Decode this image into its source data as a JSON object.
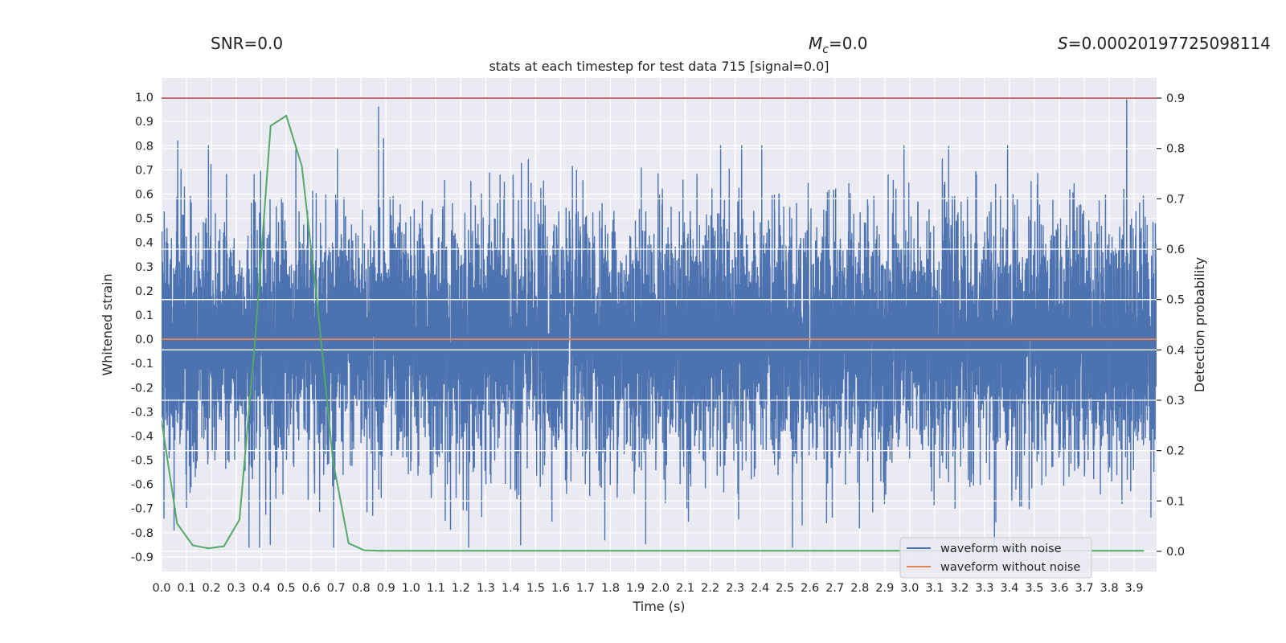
{
  "figure": {
    "header_snr": "SNR=0.0",
    "header_mc": "=0.0",
    "header_mc_symbol": "M",
    "header_mc_sub": "c",
    "header_s_symbol": "S",
    "header_s": "=0.00020197725098114",
    "title": "stats at each timestep for test data 715 [signal=0.0]"
  },
  "chart_data": {
    "type": "line",
    "title": "stats at each timestep for test data 715 [signal=0.0]",
    "xlabel": "Time (s)",
    "ylabel": "Whitened strain",
    "y2label": "Detection probability",
    "xlim": [
      0.0,
      3.99
    ],
    "ylim": [
      -0.96,
      1.08
    ],
    "y2lim": [
      -0.04,
      0.94
    ],
    "x_ticks": [
      0.0,
      0.1,
      0.2,
      0.3,
      0.4,
      0.5,
      0.6,
      0.7,
      0.8,
      0.9,
      1.0,
      1.1,
      1.2,
      1.3,
      1.4,
      1.5,
      1.6,
      1.7,
      1.8,
      1.9,
      2.0,
      2.1,
      2.2,
      2.3,
      2.4,
      2.5,
      2.6,
      2.7,
      2.8,
      2.9,
      3.0,
      3.1,
      3.2,
      3.3,
      3.4,
      3.5,
      3.6,
      3.7,
      3.8,
      3.9
    ],
    "x_tick_labels": [
      "0.0",
      "0.1",
      "0.2",
      "0.3",
      "0.4",
      "0.5",
      "0.6",
      "0.7",
      "0.8",
      "0.9",
      "1.0",
      "1.1",
      "1.2",
      "1.3",
      "1.4",
      "1.5",
      "1.6",
      "1.7",
      "1.8",
      "1.9",
      "2.0",
      "2.1",
      "2.2",
      "2.3",
      "2.4",
      "2.5",
      "2.6",
      "2.7",
      "2.8",
      "2.9",
      "3.0",
      "3.1",
      "3.2",
      "3.3",
      "3.4",
      "3.5",
      "3.6",
      "3.7",
      "3.8",
      "3.9"
    ],
    "y_ticks": [
      1.0,
      0.9,
      0.8,
      0.7,
      0.6,
      0.5,
      0.4,
      0.3,
      0.2,
      0.1,
      0.0,
      -0.1,
      -0.2,
      -0.3,
      -0.4,
      -0.5,
      -0.6,
      -0.7,
      -0.8,
      -0.9
    ],
    "y_tick_labels": [
      "1.0",
      "0.9",
      "0.8",
      "0.7",
      "0.6",
      "0.5",
      "0.4",
      "0.3",
      "0.2",
      "0.1",
      "0.0",
      "-0.1",
      "-0.2",
      "-0.3",
      "-0.4",
      "-0.5",
      "-0.6",
      "-0.7",
      "-0.8",
      "-0.9"
    ],
    "y2_ticks": [
      0.9,
      0.8,
      0.7,
      0.6,
      0.5,
      0.4,
      0.3,
      0.2,
      0.1,
      0.0
    ],
    "y2_tick_labels": [
      "0.9",
      "0.8",
      "0.7",
      "0.6",
      "0.5",
      "0.4",
      "0.3",
      "0.2",
      "0.1",
      "0.0"
    ],
    "grid": true,
    "legend_position": "bottom-right",
    "threshold": {
      "y2": 0.9,
      "color": "#c44e52"
    },
    "series": [
      {
        "name": "waveform with noise",
        "axis": "left",
        "color": "#4c72b0",
        "kind": "noise",
        "sample_rate_hz": 2048,
        "duration_s": 4.0,
        "std": 0.25,
        "peaks": [
          {
            "x": 0.01,
            "y": -0.74
          },
          {
            "x": 0.065,
            "y": 0.82
          },
          {
            "x": 0.393,
            "y": -0.86
          },
          {
            "x": 0.87,
            "y": 0.96
          },
          {
            "x": 0.89,
            "y": 0.83
          },
          {
            "x": 1.44,
            "y": -0.85
          },
          {
            "x": 2.53,
            "y": -0.86
          },
          {
            "x": 3.34,
            "y": -0.86
          },
          {
            "x": 3.87,
            "y": 0.99
          }
        ]
      },
      {
        "name": "waveform without noise",
        "axis": "left",
        "color": "#dd8452",
        "x": [
          0.0,
          3.99
        ],
        "y": [
          0.0,
          0.0
        ]
      },
      {
        "name": "",
        "axis": "right",
        "color": "#55a868",
        "x": [
          0.0,
          0.0625,
          0.125,
          0.1875,
          0.25,
          0.3125,
          0.375,
          0.4375,
          0.5,
          0.5625,
          0.625,
          0.6875,
          0.75,
          0.8125,
          0.875,
          1.0,
          2.0,
          3.0,
          3.94
        ],
        "y": [
          0.26,
          0.055,
          0.012,
          0.006,
          0.01,
          0.063,
          0.42,
          0.845,
          0.865,
          0.765,
          0.49,
          0.18,
          0.016,
          0.002,
          0.001,
          0.001,
          0.001,
          0.001,
          0.001
        ]
      }
    ]
  }
}
